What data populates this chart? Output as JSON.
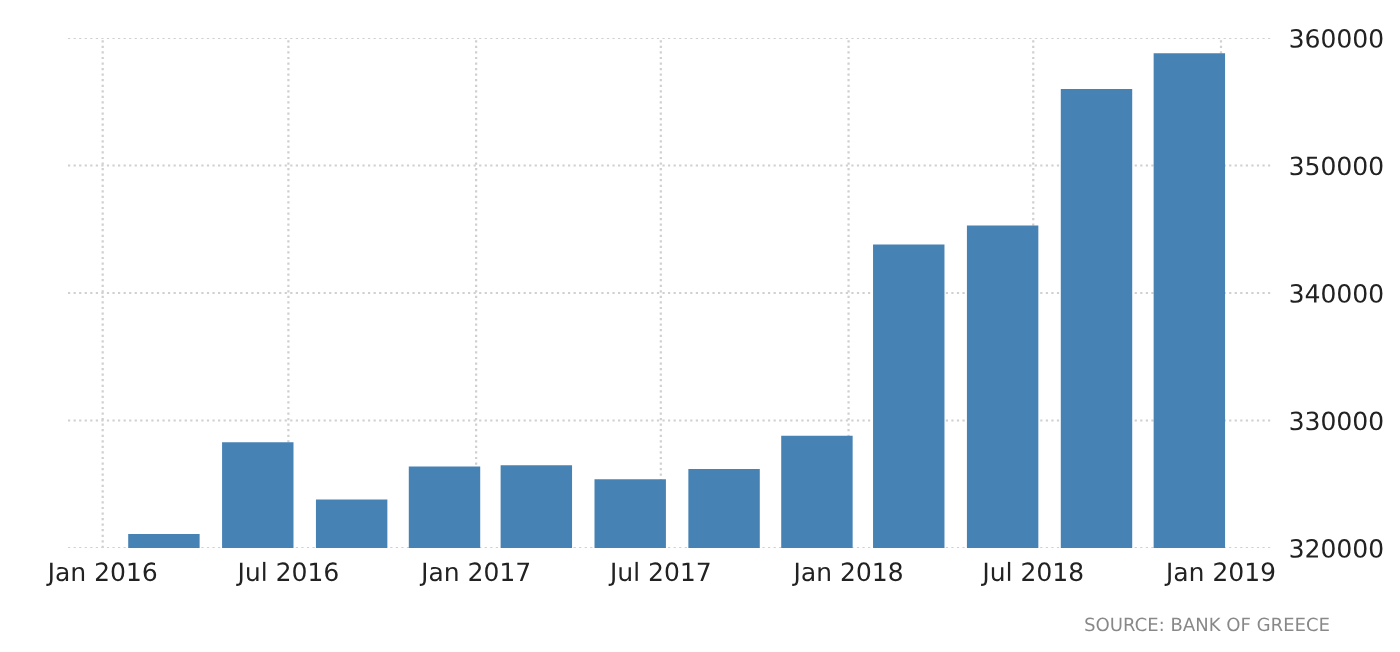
{
  "chart_data": {
    "type": "bar",
    "x": [
      "2016-03",
      "2016-06",
      "2016-09",
      "2016-12",
      "2017-03",
      "2017-06",
      "2017-09",
      "2017-12",
      "2018-03",
      "2018-06",
      "2018-09",
      "2018-12"
    ],
    "values": [
      321100,
      328300,
      323800,
      326400,
      326500,
      325400,
      326200,
      328800,
      343800,
      345300,
      356000,
      358800
    ],
    "color": "#4682b4",
    "xlim": [
      "2015-11-28",
      "2019-02-20"
    ],
    "xticks": [
      {
        "value": "2016-01-01",
        "label": "Jan 2016"
      },
      {
        "value": "2016-07-01",
        "label": "Jul 2016"
      },
      {
        "value": "2017-01-01",
        "label": "Jan 2017"
      },
      {
        "value": "2017-07-01",
        "label": "Jul 2017"
      },
      {
        "value": "2018-01-01",
        "label": "Jan 2018"
      },
      {
        "value": "2018-07-01",
        "label": "Jul 2018"
      },
      {
        "value": "2019-01-01",
        "label": "Jan 2019"
      }
    ],
    "ylim": [
      320000,
      360000
    ],
    "yticks": [
      320000,
      330000,
      340000,
      350000,
      360000
    ],
    "grid": true,
    "annotations": [
      "SOURCE: BANK OF GREECE"
    ]
  }
}
